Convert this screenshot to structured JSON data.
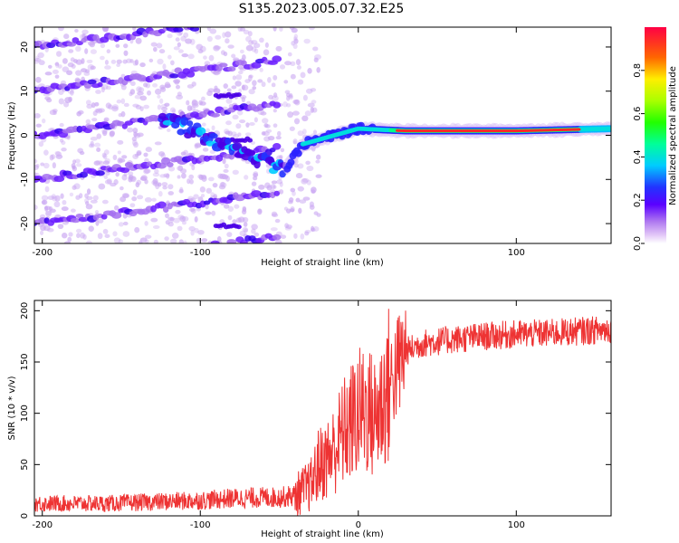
{
  "title": "S135.2023.005.07.32.E25",
  "colors": {
    "signal_line": "#ee3333",
    "spectrogram_low": "#c9a6f2",
    "spectrogram_mid": "#4a00e6"
  },
  "chart_data": [
    {
      "type": "heatmap",
      "title": "S135.2023.005.07.32.E25",
      "xlabel": "Height of straight line (km)",
      "ylabel": "Frequency (Hz)",
      "xlim": [
        -205,
        160
      ],
      "ylim": [
        -24.5,
        24.5
      ],
      "x_ticks": [
        -200,
        -100,
        0,
        100
      ],
      "y_ticks": [
        -20,
        -10,
        0,
        10,
        20
      ],
      "grid": false,
      "colorbar": {
        "label": "Normalized spectral amplitude",
        "range": [
          0,
          1
        ],
        "ticks": [
          0.0,
          0.2,
          0.4,
          0.6,
          0.8
        ],
        "colormap": "rainbow (magenta-blue-cyan-green-yellow-red)"
      },
      "features": {
        "main_ridge": [
          {
            "x": -45,
            "y": -7
          },
          {
            "x": -35,
            "y": -2
          },
          {
            "x": -20,
            "y": -0.5
          },
          {
            "x": 0,
            "y": 1.5
          },
          {
            "x": 30,
            "y": 1
          },
          {
            "x": 100,
            "y": 1
          },
          {
            "x": 160,
            "y": 1.5
          }
        ]
      }
    },
    {
      "type": "line",
      "xlabel": "Height of straight line (km)",
      "ylabel": "SNR (10 * v/v)",
      "xlim": [
        -205,
        160
      ],
      "ylim": [
        0,
        210
      ],
      "x_ticks": [
        -200,
        -100,
        0,
        100
      ],
      "y_ticks": [
        0,
        50,
        100,
        150,
        200
      ],
      "grid": false,
      "series": [
        {
          "x": [
            -205,
            -180,
            -160,
            -140,
            -120,
            -100,
            -80,
            -60,
            -50,
            -40,
            -30,
            -25,
            -20,
            -15,
            -10,
            -5,
            0,
            5,
            10,
            15,
            20,
            25,
            30,
            40,
            50,
            60,
            80,
            100,
            120,
            140,
            160
          ],
          "values": [
            12,
            12,
            12,
            13,
            14,
            15,
            17,
            18,
            18,
            20,
            30,
            50,
            55,
            65,
            80,
            90,
            100,
            105,
            95,
            110,
            130,
            145,
            160,
            168,
            170,
            172,
            175,
            177,
            178,
            180,
            182
          ]
        }
      ]
    }
  ]
}
